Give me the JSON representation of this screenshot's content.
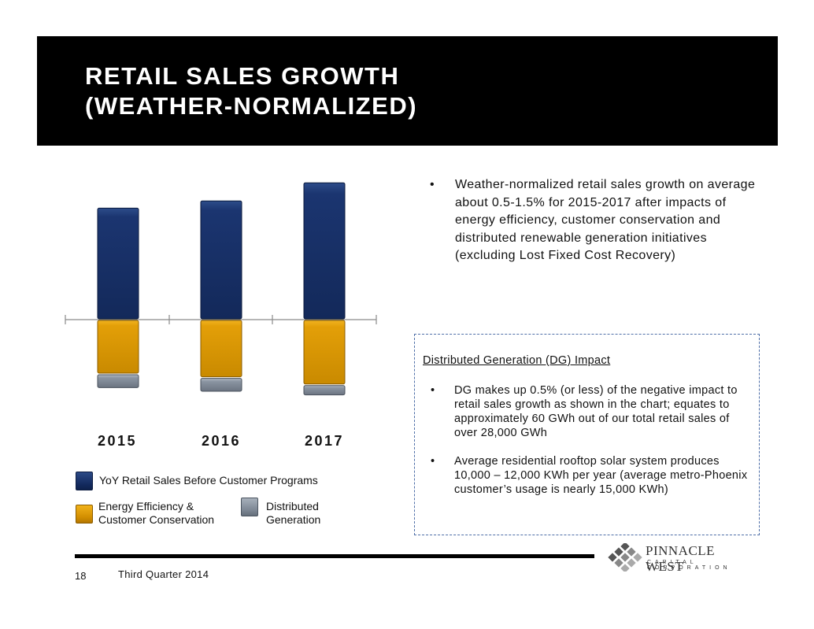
{
  "header": {
    "title": "RETAIL SALES GROWTH\n(WEATHER-NORMALIZED)"
  },
  "chart_data": {
    "type": "bar",
    "stacked": true,
    "categories": [
      "2015",
      "2016",
      "2017"
    ],
    "series": [
      {
        "name": "YoY Retail Sales Before Customer Programs",
        "values": [
          1.55,
          1.65,
          1.9
        ],
        "color": "#1b3570"
      },
      {
        "name": "Energy Efficiency & Customer Conservation",
        "values": [
          -0.75,
          -0.8,
          -0.9
        ],
        "color": "#e39f08"
      },
      {
        "name": "Distributed Generation",
        "values": [
          -0.2,
          -0.2,
          -0.15
        ],
        "color": "#7d8794"
      }
    ],
    "axis_labels_shown": false,
    "legend_position": "bottom-left"
  },
  "legend": {
    "item1": "YoY Retail Sales Before Customer Programs",
    "item2": "Energy Efficiency &\nCustomer Conservation",
    "item3": "Distributed\nGeneration"
  },
  "bullets_top": [
    {
      "marker": "•",
      "text": "Weather-normalized retail sales growth on average about 0.5-1.5% for 2015-2017 after impacts of energy efficiency, customer conservation and distributed renewable generation initiatives (excluding Lost Fixed Cost Recovery)"
    }
  ],
  "dg_box": {
    "heading": "Distributed Generation (DG) Impact",
    "items": [
      {
        "marker": "•",
        "text": "DG makes up 0.5% (or less) of the negative impact to retail sales growth as shown in the chart; equates to approximately 60 GWh out of our total retail sales of over 28,000 GWh"
      },
      {
        "marker": "•",
        "text": "Average residential rooftop solar system produces 10,000 – 12,000 KWh per year (average metro-Phoenix customer’s usage is nearly 15,000 KWh)"
      }
    ]
  },
  "footer": {
    "page": "18",
    "quarter": "Third Quarter 2014"
  },
  "logo": {
    "name": "PINNACLE WEST",
    "sub": "CAPITAL CORPORATION"
  }
}
